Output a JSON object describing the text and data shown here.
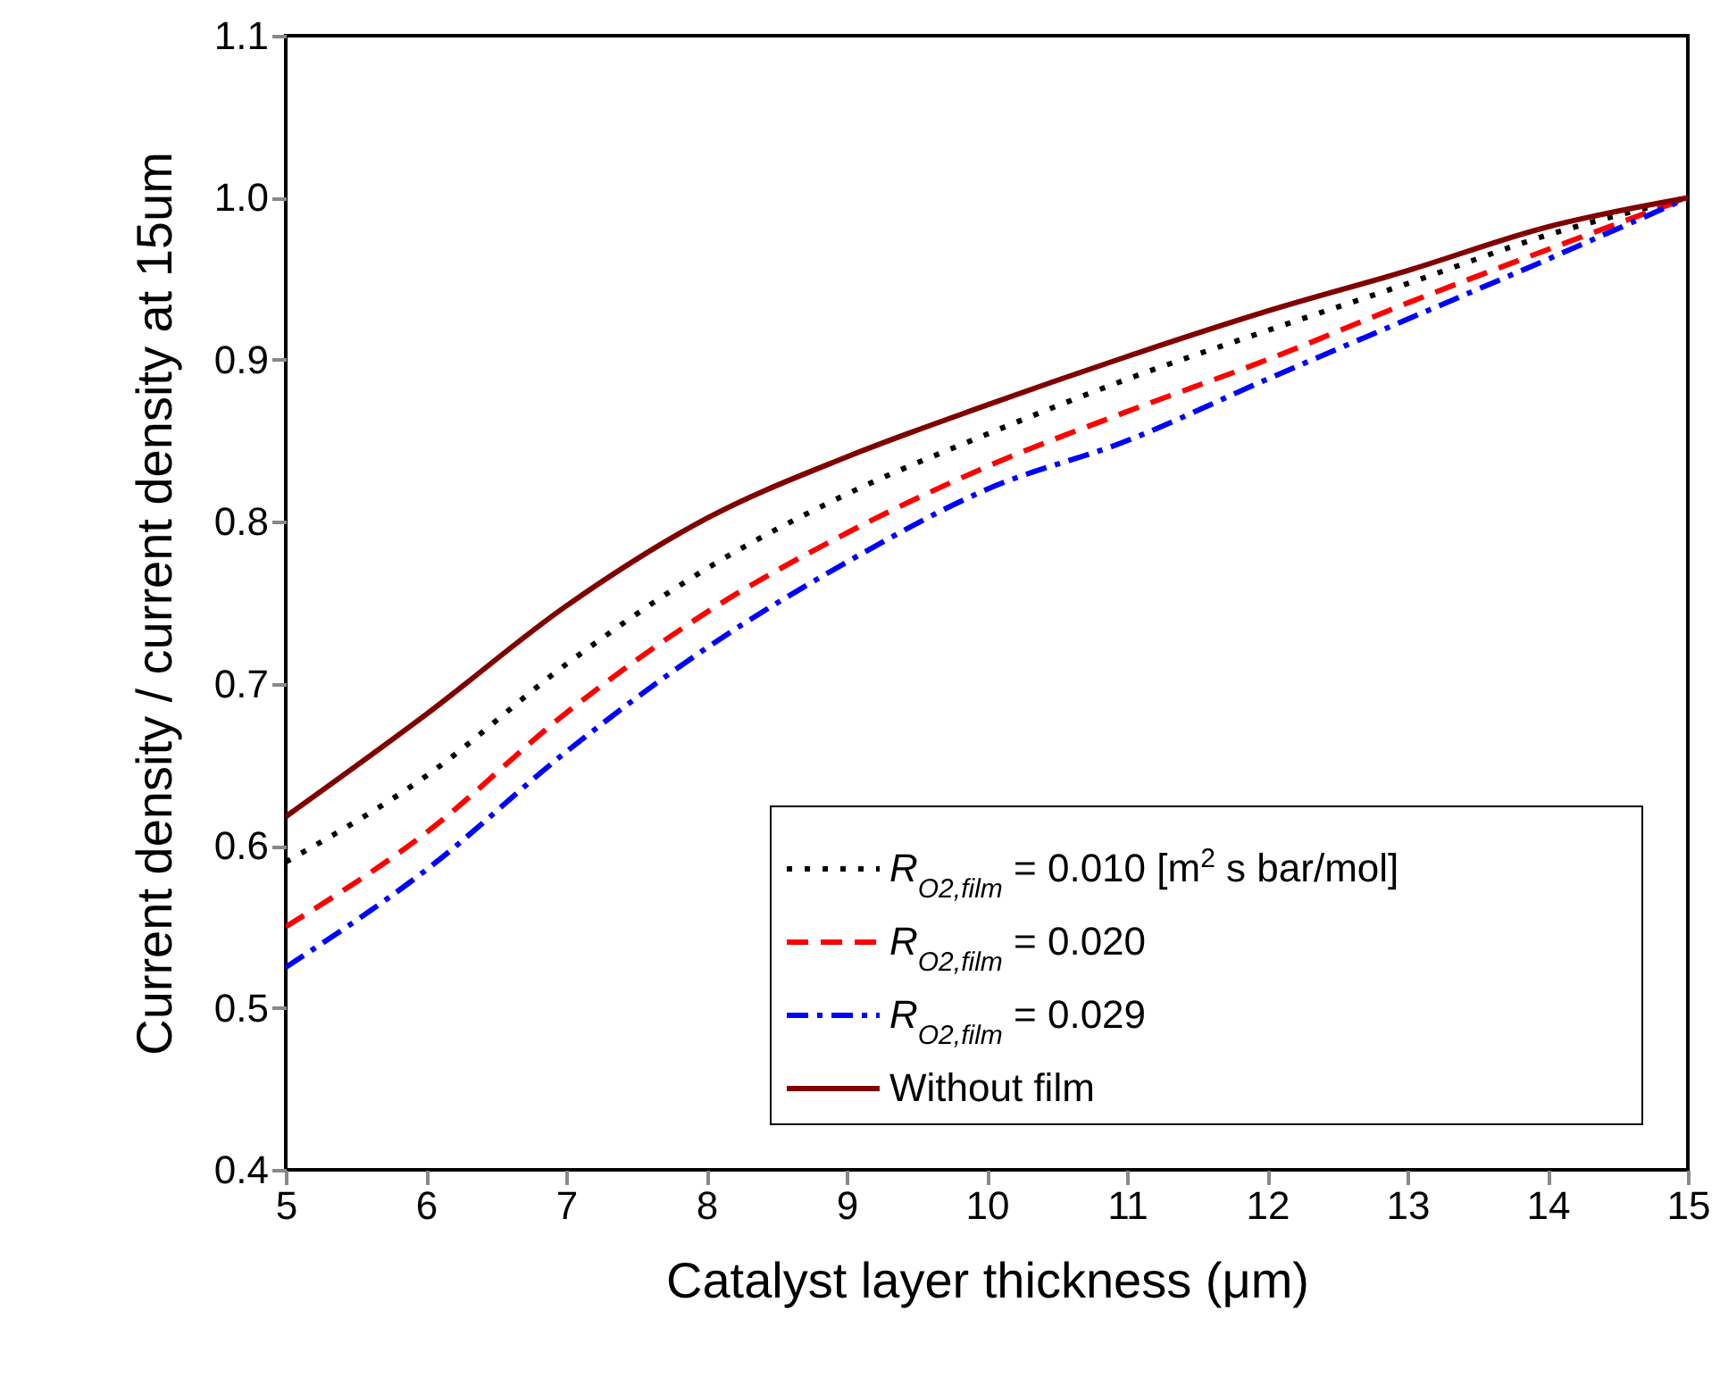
{
  "chart_data": {
    "type": "line",
    "xlabel": "Catalyst layer thickness (μm)",
    "ylabel": "Current density / current density at 15um",
    "x": [
      5,
      6,
      7,
      8,
      9,
      10,
      11,
      12,
      13,
      14,
      15
    ],
    "series": [
      {
        "name": "R$_{O2,film}$ = 0.010 [m$^{2}$ s bar/mol]",
        "color": "#000000",
        "line_style": "dotted",
        "values": [
          0.59,
          0.643,
          0.712,
          0.771,
          0.817,
          0.854,
          0.888,
          0.918,
          0.947,
          0.977,
          1.0
        ]
      },
      {
        "name": "R$_{O2,film}$ = 0.020",
        "color": "#ff0000",
        "line_style": "dashed",
        "values": [
          0.55,
          0.608,
          0.682,
          0.744,
          0.793,
          0.834,
          0.868,
          0.9,
          0.935,
          0.968,
          1.0
        ]
      },
      {
        "name": "R$_{O2,film}$ = 0.029",
        "color": "#0000ff",
        "line_style": "dashdot",
        "values": [
          0.525,
          0.585,
          0.658,
          0.722,
          0.775,
          0.82,
          0.85,
          0.888,
          0.925,
          0.962,
          1.0
        ]
      },
      {
        "name": "Without film",
        "color": "#800000",
        "line_style": "solid",
        "values": [
          0.618,
          0.681,
          0.748,
          0.802,
          0.84,
          0.872,
          0.902,
          0.93,
          0.955,
          0.982,
          1.0
        ]
      }
    ],
    "xlim": [
      5,
      15
    ],
    "xticks": [
      5,
      6,
      7,
      8,
      9,
      10,
      11,
      12,
      13,
      14,
      15
    ],
    "ylim": [
      0.4,
      1.1
    ],
    "yticks": [
      0.4,
      0.5,
      0.6,
      0.7,
      0.8,
      0.9,
      {
        "value": 1,
        "label": "1.0"
      },
      1.1
    ],
    "legend": "bottom right",
    "grid": false
  }
}
